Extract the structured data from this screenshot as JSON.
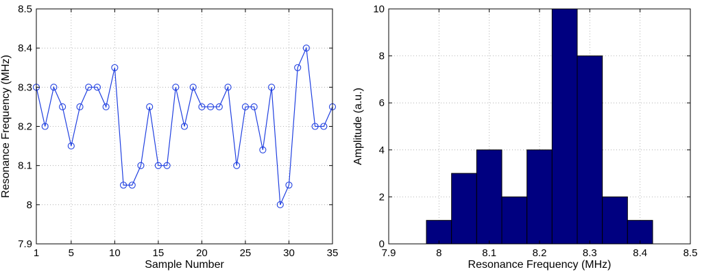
{
  "chart_data": [
    {
      "type": "line",
      "xlabel": "Sample Number",
      "ylabel": "Resonance Frequency (MHz)",
      "xlim": [
        1,
        35
      ],
      "ylim": [
        7.9,
        8.5
      ],
      "x_ticks": [
        1,
        5,
        10,
        15,
        20,
        25,
        30,
        35
      ],
      "y_ticks": [
        7.9,
        8,
        8.1,
        8.2,
        8.3,
        8.4,
        8.5
      ],
      "x_tick_labels": [
        "1",
        "5",
        "10",
        "15",
        "20",
        "25",
        "30",
        "35"
      ],
      "y_tick_labels": [
        "7.9",
        "8",
        "8.1",
        "8.2",
        "8.3",
        "8.4",
        "8.5"
      ],
      "grid": true,
      "marker": "circle",
      "color": "#1f3fe0",
      "series": [
        {
          "x": [
            1,
            2,
            3,
            4,
            5,
            6,
            7,
            8,
            9,
            10,
            11,
            12,
            13,
            14,
            15,
            16,
            17,
            18,
            19,
            20,
            21,
            22,
            23,
            24,
            25,
            26,
            27,
            28,
            29,
            30,
            31,
            32,
            33,
            34,
            35
          ],
          "values": [
            8.3,
            8.2,
            8.3,
            8.25,
            8.15,
            8.25,
            8.3,
            8.3,
            8.25,
            8.35,
            8.05,
            8.05,
            8.1,
            8.25,
            8.1,
            8.1,
            8.3,
            8.2,
            8.3,
            8.25,
            8.25,
            8.25,
            8.3,
            8.1,
            8.25,
            8.25,
            8.14,
            8.3,
            8.0,
            8.05,
            8.35,
            8.4,
            8.2,
            8.2,
            8.25
          ]
        }
      ]
    },
    {
      "type": "bar",
      "xlabel": "Resonance Frequency (MHz)",
      "ylabel": "Amplitude (a.u.)",
      "xlim": [
        7.9,
        8.5
      ],
      "ylim": [
        0,
        10
      ],
      "x_ticks": [
        7.9,
        8,
        8.1,
        8.2,
        8.3,
        8.4,
        8.5
      ],
      "y_ticks": [
        0,
        2,
        4,
        6,
        8,
        10
      ],
      "x_tick_labels": [
        "7.9",
        "8",
        "8.1",
        "8.2",
        "8.3",
        "8.4",
        "8.5"
      ],
      "y_tick_labels": [
        "0",
        "2",
        "4",
        "6",
        "8",
        "10"
      ],
      "grid": true,
      "color": "#000080",
      "bin_width": 0.05,
      "categories": [
        8.0,
        8.05,
        8.1,
        8.15,
        8.2,
        8.25,
        8.3,
        8.35,
        8.4
      ],
      "values": [
        1,
        3,
        4,
        2,
        4,
        10,
        8,
        2,
        1
      ]
    }
  ]
}
